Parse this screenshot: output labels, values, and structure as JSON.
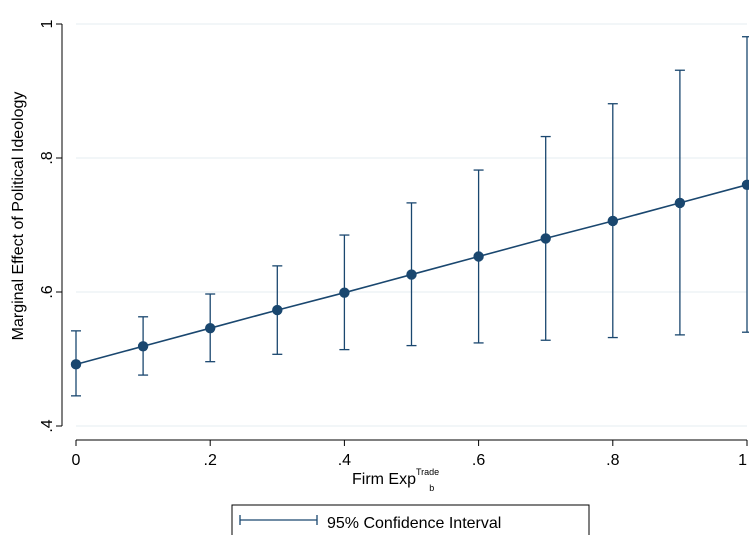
{
  "chart_data": {
    "type": "line",
    "xlabel": "Firm Exp",
    "xlabel_superscript": "Trade",
    "xlabel_subscript": "b",
    "ylabel": "Marginal Effect of Political Ideology",
    "xlim": [
      0,
      1
    ],
    "ylim": [
      0.4,
      1.0
    ],
    "x_ticks": [
      0,
      0.2,
      0.4,
      0.6,
      0.8,
      1
    ],
    "x_tick_labels": [
      "0",
      ".2",
      ".4",
      ".6",
      ".8",
      "1"
    ],
    "y_ticks": [
      0.4,
      0.6,
      0.8,
      1.0
    ],
    "y_tick_labels": [
      ".4",
      ".6",
      ".8",
      "1"
    ],
    "grid": true,
    "legend_position": "bottom-center",
    "series": [
      {
        "type": "line",
        "x": [
          0,
          0.1,
          0.2,
          0.3,
          0.4,
          0.5,
          0.6,
          0.7,
          0.8,
          0.9,
          1.0
        ],
        "y": [
          0.492,
          0.519,
          0.546,
          0.573,
          0.599,
          0.626,
          0.653,
          0.68,
          0.706,
          0.733,
          0.76
        ],
        "color": "#1a476f"
      },
      {
        "name": "95% Confidence Interval",
        "type": "errorbar",
        "x": [
          0,
          0.1,
          0.2,
          0.3,
          0.4,
          0.5,
          0.6,
          0.7,
          0.8,
          0.9,
          1.0
        ],
        "lower": [
          0.445,
          0.476,
          0.496,
          0.507,
          0.514,
          0.52,
          0.524,
          0.528,
          0.532,
          0.536,
          0.54
        ],
        "upper": [
          0.542,
          0.563,
          0.597,
          0.639,
          0.685,
          0.733,
          0.782,
          0.832,
          0.881,
          0.931,
          0.981
        ],
        "color": "#1a476f"
      }
    ]
  }
}
